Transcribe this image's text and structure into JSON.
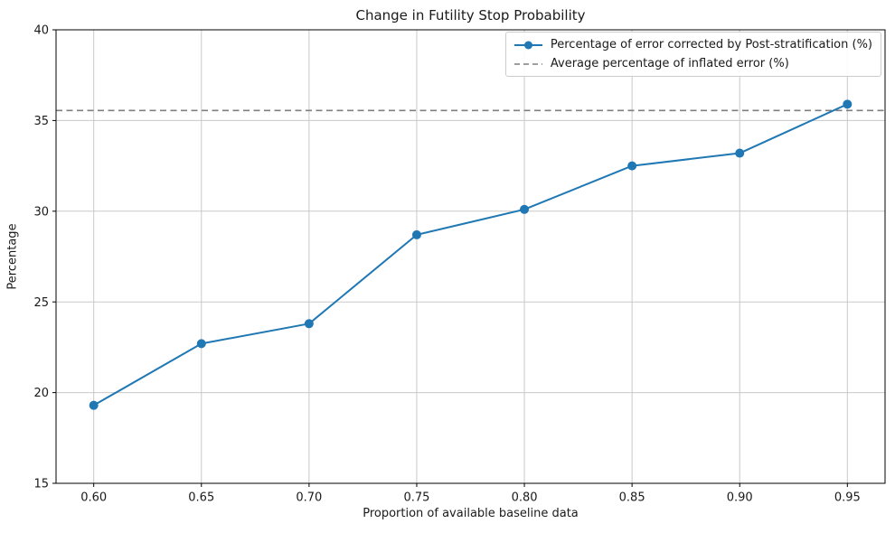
{
  "chart_data": {
    "type": "line",
    "title": "Change in Futility Stop Probability",
    "xlabel": "Proportion of available baseline data",
    "ylabel": "Percentage",
    "x": [
      0.6,
      0.65,
      0.7,
      0.75,
      0.8,
      0.85,
      0.9,
      0.95
    ],
    "series": [
      {
        "name": "Percentage of error corrected by Post-stratification (%)",
        "style": "solid-line-with-circle-markers",
        "color": "#1f77b4",
        "values": [
          19.3,
          22.7,
          23.8,
          28.7,
          30.1,
          32.5,
          33.2,
          35.9
        ]
      },
      {
        "name": "Average percentage of inflated error (%)",
        "style": "dashed-horizontal-line",
        "color": "#7f7f7f",
        "value": 35.55
      }
    ],
    "xtick_labels": [
      "0.60",
      "0.65",
      "0.70",
      "0.75",
      "0.80",
      "0.85",
      "0.90",
      "0.95"
    ],
    "ytick_labels": [
      "15",
      "20",
      "25",
      "30",
      "35",
      "40"
    ],
    "xlim": [
      0.5825,
      0.9675
    ],
    "ylim": [
      15,
      40
    ],
    "grid": true,
    "grid_color": "#c9c9c9",
    "axis_color": "#000000",
    "tick_label_color": "#1a1a1a",
    "legend_position": "upper right"
  }
}
